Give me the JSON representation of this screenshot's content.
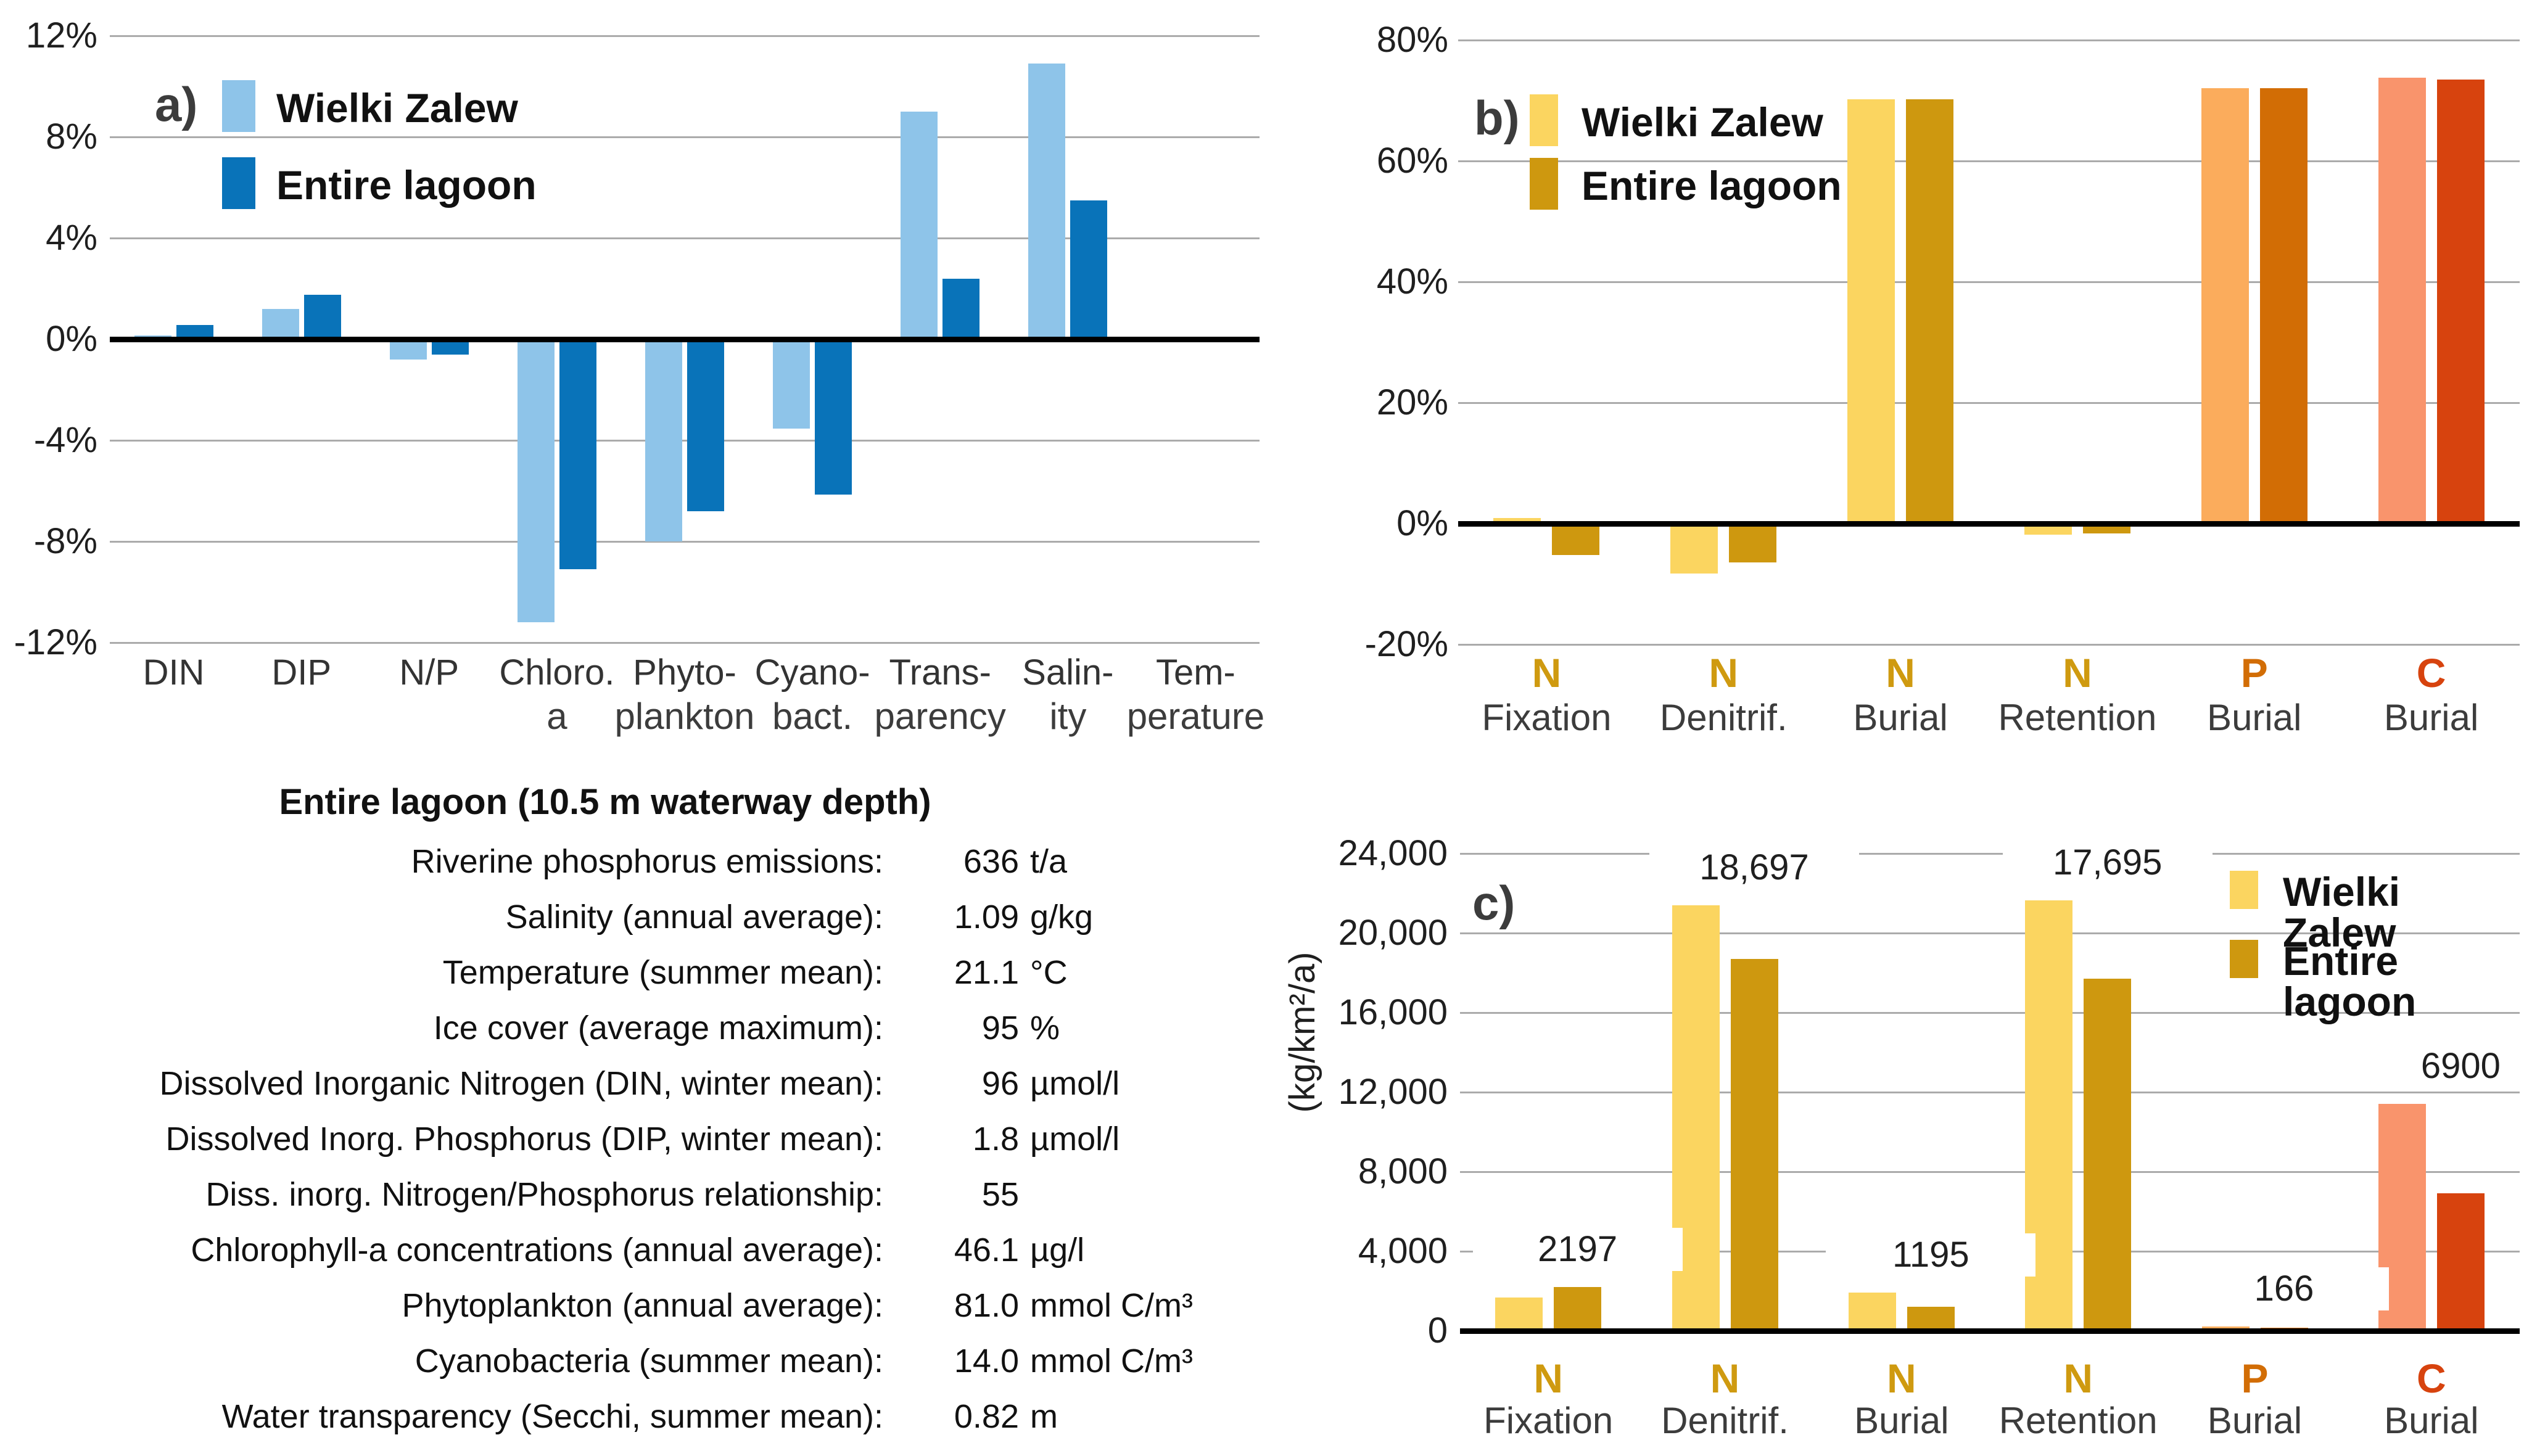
{
  "chart_data": [
    {
      "id": "panel_a",
      "type": "bar",
      "panel_label": "a)",
      "tick_suffix": "%",
      "ymax": 12,
      "ymin": -12,
      "ystep": 4,
      "grid": true,
      "legend_position": "top-left-inside",
      "yticks": [
        {
          "label": "12%",
          "value": 12
        },
        {
          "label": "8%",
          "value": 8
        },
        {
          "label": "4%",
          "value": 4
        },
        {
          "label": "0%",
          "value": 0
        },
        {
          "label": "-4%",
          "value": -4
        },
        {
          "label": "-8%",
          "value": -8
        },
        {
          "label": "-12%",
          "value": -12
        }
      ],
      "categories": [
        {
          "line1": "DIN",
          "line2": ""
        },
        {
          "line1": "DIP",
          "line2": ""
        },
        {
          "line1": "N/P",
          "line2": ""
        },
        {
          "line1": "Chloro.",
          "line2": "a"
        },
        {
          "line1": "Phyto-",
          "line2": "plankton"
        },
        {
          "line1": "Cyano-",
          "line2": "bact."
        },
        {
          "line1": "Trans-",
          "line2": "parency"
        },
        {
          "line1": "Salin-",
          "line2": "ity"
        },
        {
          "line1": "Tem-",
          "line2": "perature"
        }
      ],
      "series": [
        {
          "name": "Wielki Zalew",
          "color": "#8EC4E9",
          "values": [
            0.15,
            1.2,
            -0.7,
            -11.1,
            -7.9,
            -3.45,
            9.0,
            10.9,
            0
          ]
        },
        {
          "name": "Entire lagoon",
          "color": "#0973B9",
          "values": [
            0.55,
            1.75,
            -0.5,
            -9.0,
            -6.7,
            -6.05,
            2.4,
            5.5,
            0
          ]
        }
      ]
    },
    {
      "id": "panel_b",
      "type": "bar",
      "panel_label": "b)",
      "tick_suffix": "%",
      "ymax": 80,
      "ymin": -20,
      "ystep": 20,
      "grid": true,
      "legend_position": "top-left-inside",
      "yticks": [
        {
          "label": "80%",
          "value": 80
        },
        {
          "label": "60%",
          "value": 60
        },
        {
          "label": "40%",
          "value": 40
        },
        {
          "label": "20%",
          "value": 20
        },
        {
          "label": "0%",
          "value": 0
        },
        {
          "label": "-20%",
          "value": -20
        }
      ],
      "categories": [
        {
          "line1": "N",
          "color": "#CF9A10",
          "line2": "Fixation"
        },
        {
          "line1": "N",
          "color": "#CF9A10",
          "line2": "Denitrif."
        },
        {
          "line1": "N",
          "color": "#CF9A10",
          "line2": "Burial"
        },
        {
          "line1": "N",
          "color": "#CF9A10",
          "line2": "Retention"
        },
        {
          "line1": "P",
          "color": "#D26D05",
          "line2": "Burial"
        },
        {
          "line1": "C",
          "color": "#D7430E",
          "line2": "Burial"
        }
      ],
      "series": [
        {
          "name": "Wielki Zalew",
          "colors": [
            "#FBD560",
            "#FBD560",
            "#FBD560",
            "#FBD560",
            "#FBAC5C",
            "#F9946C"
          ],
          "values": [
            0.9,
            -7.9,
            70.2,
            -1.4,
            72.0,
            73.8
          ]
        },
        {
          "name": "Entire lagoon",
          "colors": [
            "#CE980F",
            "#CE980F",
            "#CE980F",
            "#CE980F",
            "#D26D05",
            "#D7430E"
          ],
          "values": [
            -4.8,
            -6.0,
            70.2,
            -1.2,
            72.0,
            73.5
          ]
        }
      ]
    },
    {
      "id": "panel_c",
      "type": "bar",
      "panel_label": "c)",
      "ylabel": "(kg/km²/a)",
      "ymax": 24000,
      "ymin": 0,
      "ystep": 4000,
      "grid": true,
      "legend_position": "top-right-inside",
      "yticks": [
        {
          "label": "24,000",
          "value": 24000
        },
        {
          "label": "20,000",
          "value": 20000
        },
        {
          "label": "16,000",
          "value": 16000
        },
        {
          "label": "12,000",
          "value": 12000
        },
        {
          "label": "8,000",
          "value": 8000
        },
        {
          "label": "4,000",
          "value": 4000
        },
        {
          "label": "0",
          "value": 0
        }
      ],
      "categories": [
        {
          "line1": "N",
          "color": "#CF9A10",
          "line2": "Fixation"
        },
        {
          "line1": "N",
          "color": "#CF9A10",
          "line2": "Denitrif."
        },
        {
          "line1": "N",
          "color": "#CF9A10",
          "line2": "Burial"
        },
        {
          "line1": "N",
          "color": "#CF9A10",
          "line2": "Retention"
        },
        {
          "line1": "P",
          "color": "#D26D05",
          "line2": "Burial"
        },
        {
          "line1": "C",
          "color": "#D7430E",
          "line2": "Burial"
        }
      ],
      "series": [
        {
          "name": "Wielki Zalew",
          "colors": [
            "#FBD560",
            "#FBD560",
            "#FBD560",
            "#FBD560",
            "#FBAC5C",
            "#F9946C"
          ],
          "values": [
            1670,
            21400,
            1920,
            21640,
            220,
            11400
          ]
        },
        {
          "name": "Entire lagoon",
          "colors": [
            "#CE980F",
            "#CE980F",
            "#CE980F",
            "#CE980F",
            "#D26D05",
            "#D7430E"
          ],
          "values": [
            2197,
            18697,
            1195,
            17695,
            166,
            6900
          ]
        }
      ],
      "bar_labels": [
        "2197",
        "18,697",
        "1195",
        "17,695",
        "166",
        "6900"
      ],
      "bar_labels_series": "Entire lagoon"
    }
  ],
  "info": {
    "title": "Entire lagoon (10.5 m waterway depth)",
    "rows": [
      {
        "label": "Riverine phosphorus emissions:",
        "value": "636",
        "unit": "t/a"
      },
      {
        "label": "Salinity (annual average):",
        "value": "1.09",
        "unit": "g/kg"
      },
      {
        "label": "Temperature (summer mean):",
        "value": "21.1",
        "unit": "°C"
      },
      {
        "label": "Ice cover (average maximum):",
        "value": "95",
        "unit": "%"
      },
      {
        "label": "Dissolved Inorganic Nitrogen (DIN, winter mean):",
        "value": "96",
        "unit": "µmol/l"
      },
      {
        "label": "Dissolved Inorg. Phosphorus (DIP, winter mean):",
        "value": "1.8",
        "unit": "µmol/l"
      },
      {
        "label": "Diss. inorg. Nitrogen/Phosphorus relationship:",
        "value": "55",
        "unit": ""
      },
      {
        "label": "Chlorophyll-a concentrations (annual average):",
        "value": "46.1",
        "unit": "µg/l"
      },
      {
        "label": "Phytoplankton  (annual average):",
        "value": "81.0",
        "unit": "mmol C/m³"
      },
      {
        "label": "Cyanobacteria (summer mean):",
        "value": "14.0",
        "unit": "mmol C/m³"
      },
      {
        "label": "Water transparency (Secchi, summer mean):",
        "value": "0.82",
        "unit": "m"
      }
    ]
  }
}
